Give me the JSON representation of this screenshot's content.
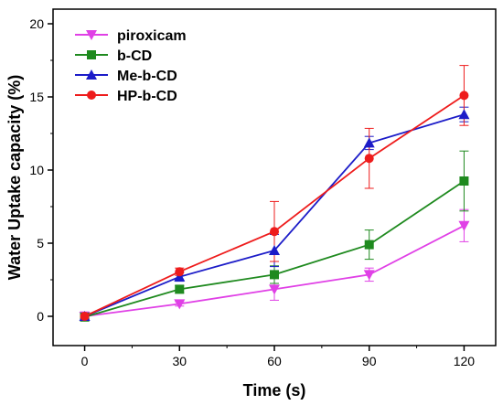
{
  "chart_data": {
    "type": "line",
    "xlabel": "Time (s)",
    "ylabel": "Water Uptake capacity (%)",
    "xlim": [
      -10,
      130
    ],
    "ylim": [
      -2,
      21
    ],
    "xticks": [
      0,
      30,
      60,
      90,
      120
    ],
    "yticks": [
      0,
      5,
      10,
      15,
      20
    ],
    "legend_position": "top-left",
    "grid": false,
    "x": [
      0,
      30,
      60,
      90,
      120
    ],
    "series": [
      {
        "name": "piroxicam",
        "color": "#e040e6",
        "marker": "triangle-down",
        "values": [
          0.0,
          0.85,
          1.85,
          2.85,
          6.2
        ],
        "errors": [
          0.3,
          0.15,
          0.75,
          0.45,
          1.1
        ]
      },
      {
        "name": "b-CD",
        "color": "#1f8a1f",
        "marker": "square",
        "values": [
          -0.05,
          1.85,
          2.85,
          4.9,
          9.25
        ],
        "errors": [
          0.2,
          0.25,
          0.6,
          1.0,
          2.05
        ]
      },
      {
        "name": "Me-b-CD",
        "color": "#1c1cc8",
        "marker": "triangle-up",
        "values": [
          0.0,
          2.7,
          4.5,
          11.85,
          13.8
        ],
        "errors": [
          0.15,
          0.3,
          1.1,
          0.45,
          0.5
        ]
      },
      {
        "name": "HP-b-CD",
        "color": "#ee1c1c",
        "marker": "circle",
        "values": [
          0.0,
          3.05,
          5.8,
          10.8,
          15.1
        ],
        "errors": [
          0.2,
          0.25,
          2.05,
          2.05,
          2.05
        ]
      }
    ]
  }
}
